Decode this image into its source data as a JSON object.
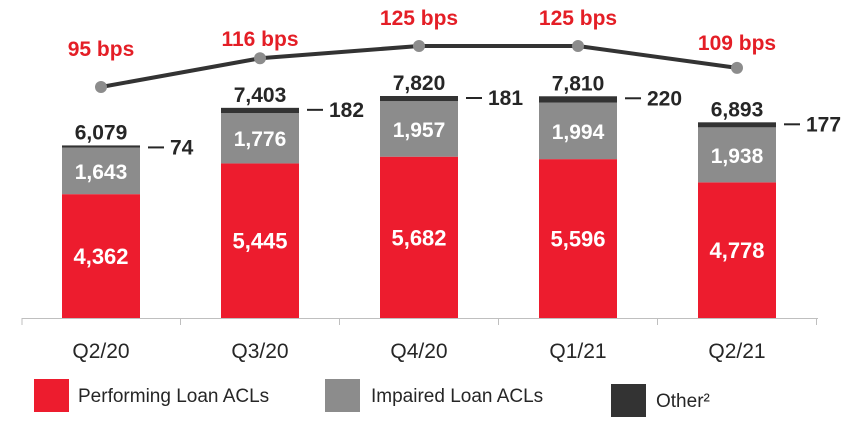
{
  "chart_data": {
    "type": "bar",
    "stacked": true,
    "categories": [
      "Q2/20",
      "Q3/20",
      "Q4/20",
      "Q1/21",
      "Q2/21"
    ],
    "series": [
      {
        "name": "Performing Loan ACLs",
        "values": [
          4362,
          5445,
          5682,
          5596,
          4778
        ],
        "color": "#ED1C2E"
      },
      {
        "name": "Impaired Loan ACLs",
        "values": [
          1643,
          1776,
          1957,
          1994,
          1938
        ],
        "color": "#8C8C8C"
      },
      {
        "name": "Other²",
        "values": [
          74,
          182,
          181,
          220,
          177
        ],
        "color": "#333333"
      }
    ],
    "totals": [
      6079,
      7403,
      7820,
      7810,
      6893
    ],
    "line": {
      "values": [
        95,
        116,
        125,
        125,
        109
      ],
      "labels": [
        "95 bps",
        "116 bps",
        "125 bps",
        "125 bps",
        "109 bps"
      ],
      "color": "#333333",
      "label_color": "#E41E26"
    },
    "performing_labels": [
      "4,362",
      "5,445",
      "5,682",
      "5,596",
      "4,778"
    ],
    "impaired_labels": [
      "1,643",
      "1,776",
      "1,957",
      "1,994",
      "1,938"
    ],
    "other_labels": [
      "74",
      "182",
      "181",
      "220",
      "177"
    ],
    "total_labels": [
      "6,079",
      "7,403",
      "7,820",
      "7,810",
      "6,893"
    ],
    "ylim": [
      0,
      7820
    ],
    "grid": false,
    "legend_position": "bottom"
  }
}
